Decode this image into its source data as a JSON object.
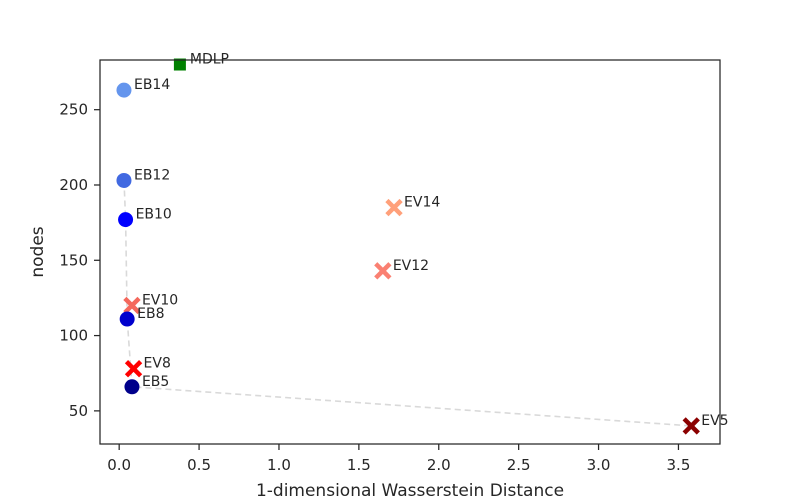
{
  "chart_data": {
    "type": "scatter",
    "xlabel": "1-dimensional Wasserstein Distance",
    "ylabel": "nodes",
    "xlim": [
      -0.12,
      3.76
    ],
    "ylim": [
      28,
      283
    ],
    "xticks": [
      0.0,
      0.5,
      1.0,
      1.5,
      2.0,
      2.5,
      3.0,
      3.5
    ],
    "xtick_labels": [
      "0.0",
      "0.5",
      "1.0",
      "1.5",
      "2.0",
      "2.5",
      "3.0",
      "3.5"
    ],
    "yticks": [
      50,
      100,
      150,
      200,
      250
    ],
    "ytick_labels": [
      "50",
      "100",
      "150",
      "200",
      "250"
    ],
    "grid": false,
    "points": [
      {
        "label": "MDLP",
        "x": 0.38,
        "y": 280,
        "marker": "square",
        "color": "#008000"
      },
      {
        "label": "EB14",
        "x": 0.03,
        "y": 263,
        "marker": "circle",
        "color": "#6495ed"
      },
      {
        "label": "EB12",
        "x": 0.03,
        "y": 203,
        "marker": "circle",
        "color": "#4169e1"
      },
      {
        "label": "EB10",
        "x": 0.04,
        "y": 177,
        "marker": "circle",
        "color": "#0000ff"
      },
      {
        "label": "EV14",
        "x": 1.72,
        "y": 185,
        "marker": "x",
        "color": "#ffa07a"
      },
      {
        "label": "EV12",
        "x": 1.65,
        "y": 143,
        "marker": "x",
        "color": "#fa8072"
      },
      {
        "label": "EV10",
        "x": 0.08,
        "y": 120,
        "marker": "x",
        "color": "#f4685c"
      },
      {
        "label": "EB8",
        "x": 0.05,
        "y": 111,
        "marker": "circle",
        "color": "#0000cd"
      },
      {
        "label": "EV8",
        "x": 0.09,
        "y": 78,
        "marker": "x",
        "color": "#ff0000"
      },
      {
        "label": "EB5",
        "x": 0.08,
        "y": 66,
        "marker": "circle",
        "color": "#00008b"
      },
      {
        "label": "EV5",
        "x": 3.58,
        "y": 40,
        "marker": "x",
        "color": "#8b0000"
      }
    ],
    "pareto_front": [
      {
        "x": 0.03,
        "y": 203
      },
      {
        "x": 0.04,
        "y": 177
      },
      {
        "x": 0.05,
        "y": 111
      },
      {
        "x": 0.08,
        "y": 66
      },
      {
        "x": 3.58,
        "y": 40
      }
    ],
    "pareto_color": "#d9d9d9"
  }
}
